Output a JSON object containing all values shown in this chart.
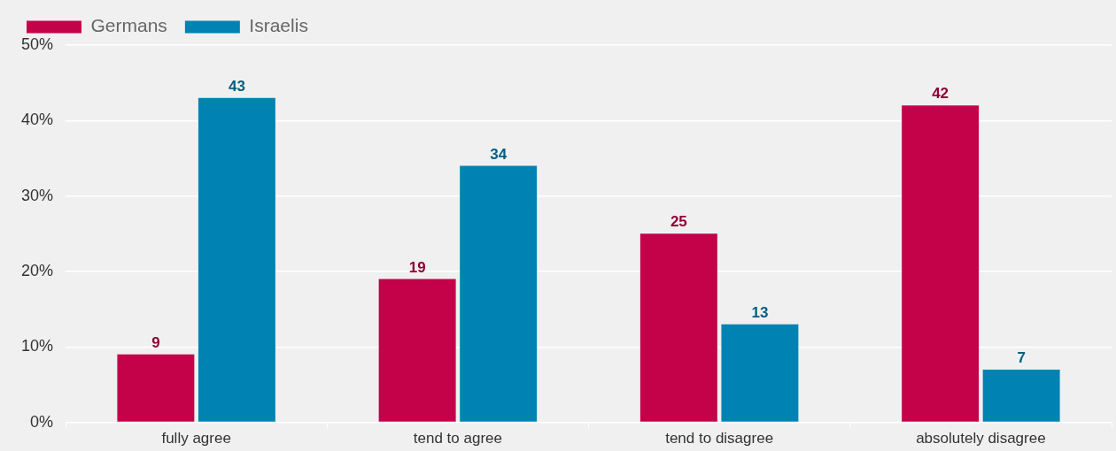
{
  "chart_data": {
    "type": "bar",
    "categories": [
      "fully agree",
      "tend to agree",
      "tend to disagree",
      "absolutely disagree"
    ],
    "series": [
      {
        "name": "Germans",
        "color": "#c4024a",
        "values": [
          9,
          19,
          25,
          42
        ]
      },
      {
        "name": "Israelis",
        "color": "#0083b3",
        "values": [
          43,
          34,
          13,
          7
        ]
      }
    ],
    "ylim": [
      0,
      50
    ],
    "yticks": [
      {
        "value": 0,
        "label": "0%"
      },
      {
        "value": 10,
        "label": "10%"
      },
      {
        "value": 20,
        "label": "20%"
      },
      {
        "value": 30,
        "label": "30%"
      },
      {
        "value": 40,
        "label": "40%"
      },
      {
        "value": 50,
        "label": "50%"
      }
    ],
    "grid": "y",
    "legend": "top left",
    "data_labels": true
  }
}
